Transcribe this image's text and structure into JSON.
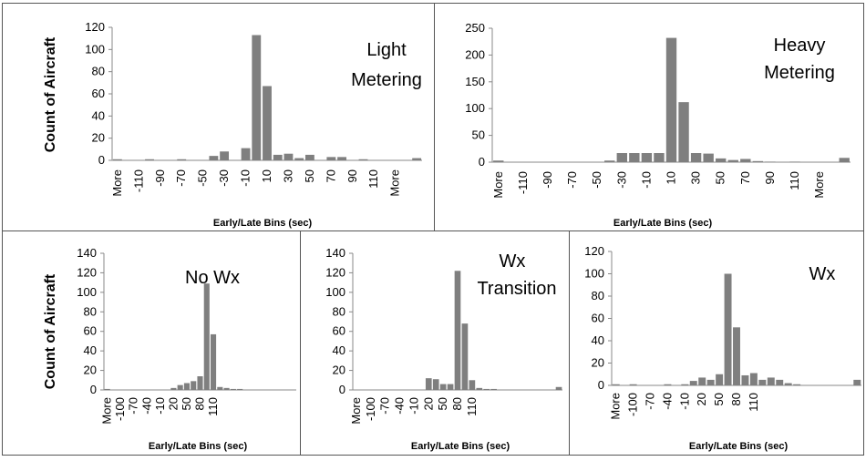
{
  "chart_data": [
    {
      "type": "bar",
      "panel": "light-metering",
      "annotation": [
        "Light",
        "Metering"
      ],
      "xlabel": "Early/Late Bins (sec)",
      "ylabel": "Count of Aircraft",
      "ylim": [
        0,
        120
      ],
      "yticks": [
        0,
        20,
        40,
        60,
        80,
        100,
        120
      ],
      "tick_labels": [
        "More",
        "-110",
        "-90",
        "-70",
        "-50",
        "-30",
        "-10",
        "10",
        "30",
        "50",
        "70",
        "90",
        "110",
        "More"
      ],
      "values": [
        1,
        0,
        0,
        1,
        0,
        0,
        1,
        0,
        0,
        4,
        8,
        0,
        11,
        113,
        67,
        5,
        6,
        2,
        5,
        0,
        3,
        3,
        0,
        1,
        0,
        0,
        0,
        0,
        2
      ]
    },
    {
      "type": "bar",
      "panel": "heavy-metering",
      "annotation": [
        "Heavy",
        "Metering"
      ],
      "xlabel": "Early/Late Bins (sec)",
      "ylabel": "",
      "ylim": [
        0,
        250
      ],
      "yticks": [
        0,
        50,
        100,
        150,
        200,
        250
      ],
      "tick_labels": [
        "More",
        "-110",
        "-90",
        "-70",
        "-50",
        "-30",
        "-10",
        "10",
        "30",
        "50",
        "70",
        "90",
        "110",
        "More"
      ],
      "values": [
        3,
        0,
        0,
        0,
        0,
        0,
        0,
        0,
        0,
        3,
        17,
        17,
        17,
        17,
        232,
        112,
        17,
        16,
        7,
        4,
        6,
        2,
        1,
        0,
        1,
        0,
        0,
        0,
        8
      ]
    },
    {
      "type": "bar",
      "panel": "no-wx",
      "annotation": [
        "No Wx"
      ],
      "xlabel": "Early/Late Bins (sec)",
      "ylabel": "Count of Aircraft",
      "ylim": [
        0,
        140
      ],
      "yticks": [
        0,
        20,
        40,
        60,
        80,
        100,
        120,
        140
      ],
      "tick_labels": [
        "More",
        "-100",
        "-70",
        "-40",
        "-10",
        "20",
        "50",
        "80",
        "110"
      ],
      "values": [
        1,
        0,
        0,
        0,
        0,
        0,
        0,
        0,
        0,
        0,
        2,
        5,
        7,
        9,
        14,
        109,
        57,
        3,
        2,
        1,
        1,
        0,
        0,
        0,
        0,
        0,
        0,
        0,
        0
      ]
    },
    {
      "type": "bar",
      "panel": "wx-transition",
      "annotation": [
        "Wx",
        "Transition"
      ],
      "xlabel": "Early/Late Bins (sec)",
      "ylabel": "",
      "ylim": [
        0,
        140
      ],
      "yticks": [
        0,
        20,
        40,
        60,
        80,
        100,
        120,
        140
      ],
      "tick_labels": [
        "More",
        "-100",
        "-70",
        "-40",
        "-10",
        "20",
        "50",
        "80",
        "110"
      ],
      "values": [
        0,
        0,
        0,
        0,
        0,
        0,
        0,
        0,
        0,
        0,
        12,
        11,
        6,
        6,
        122,
        68,
        10,
        2,
        1,
        1,
        0,
        0,
        0,
        0,
        0,
        0,
        0,
        0,
        3
      ]
    },
    {
      "type": "bar",
      "panel": "wx",
      "annotation": [
        "Wx"
      ],
      "xlabel": "Early/Late Bins (sec)",
      "ylabel": "",
      "ylim": [
        0,
        120
      ],
      "yticks": [
        0,
        20,
        40,
        60,
        80,
        100,
        120
      ],
      "tick_labels": [
        "More",
        "-100",
        "-70",
        "-40",
        "-10",
        "20",
        "50",
        "80",
        "110"
      ],
      "values": [
        1,
        0,
        1,
        0,
        0,
        0,
        1,
        0,
        1,
        4,
        7,
        5,
        10,
        100,
        52,
        9,
        11,
        5,
        7,
        5,
        2,
        1,
        0,
        0,
        0,
        0,
        0,
        0,
        5
      ]
    }
  ]
}
